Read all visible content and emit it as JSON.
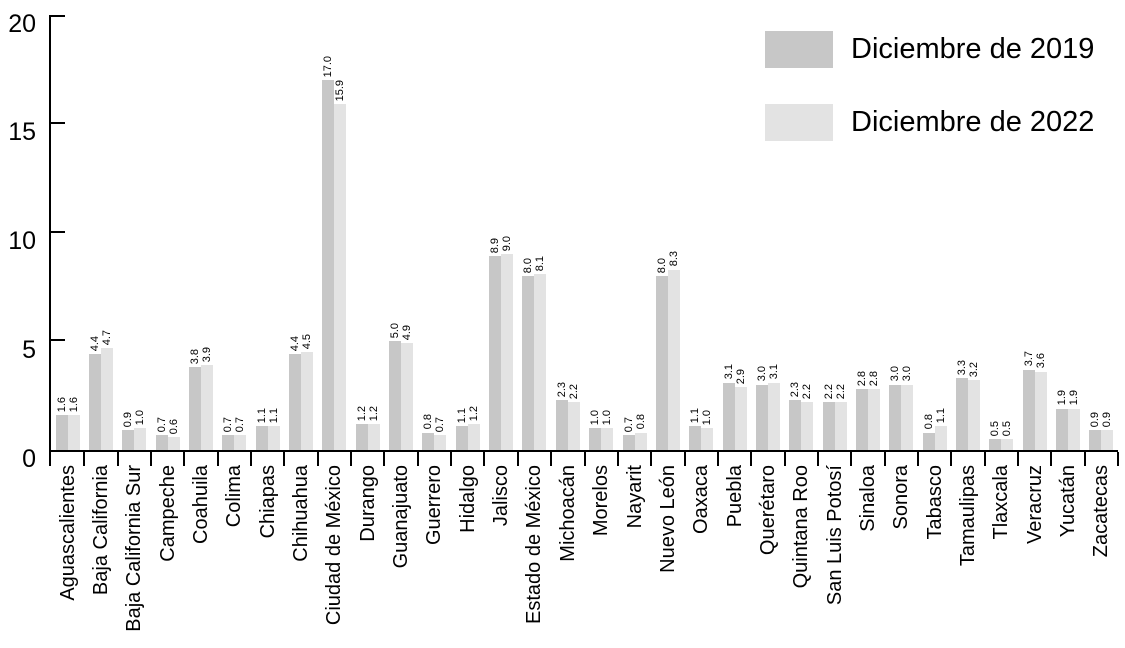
{
  "chart_data": {
    "type": "bar",
    "title": "",
    "xlabel": "",
    "ylabel": "",
    "ylim": [
      0,
      20
    ],
    "yticks": [
      0,
      5,
      10,
      15,
      20
    ],
    "grid": false,
    "legend_position": "top-right",
    "value_labels": true,
    "value_label_decimals": 1,
    "axis_color": "#000000",
    "background_color": "#ffffff",
    "categories": [
      "Aguascalientes",
      "Baja California",
      "Baja California Sur",
      "Campeche",
      "Coahuila",
      "Colima",
      "Chiapas",
      "Chihuahua",
      "Ciudad de México",
      "Durango",
      "Guanajuato",
      "Guerrero",
      "Hidalgo",
      "Jalisco",
      "Estado de México",
      "Michoacán",
      "Morelos",
      "Nayarit",
      "Nuevo León",
      "Oaxaca",
      "Puebla",
      "Querétaro",
      "Quintana Roo",
      "San Luis Potosí",
      "Sinaloa",
      "Sonora",
      "Tabasco",
      "Tamaulipas",
      "Tlaxcala",
      "Veracruz",
      "Yucatán",
      "Zacatecas"
    ],
    "series": [
      {
        "name": "Diciembre de 2019",
        "color": "#c7c7c7",
        "values": [
          1.6,
          4.4,
          0.9,
          0.7,
          3.8,
          0.7,
          1.1,
          4.4,
          17.0,
          1.2,
          5.0,
          0.8,
          1.1,
          8.9,
          8.0,
          2.3,
          1.0,
          0.7,
          8.0,
          1.1,
          3.1,
          3.0,
          2.3,
          2.2,
          2.8,
          3.0,
          0.8,
          3.3,
          0.5,
          3.7,
          1.9,
          0.9
        ]
      },
      {
        "name": "Diciembre de 2022",
        "color": "#e3e3e3",
        "values": [
          1.6,
          4.7,
          1.0,
          0.6,
          3.9,
          0.7,
          1.1,
          4.5,
          15.9,
          1.2,
          4.9,
          0.7,
          1.2,
          9.0,
          8.1,
          2.2,
          1.0,
          0.8,
          8.3,
          1.0,
          2.9,
          3.1,
          2.2,
          2.2,
          2.8,
          3.0,
          1.1,
          3.2,
          0.5,
          3.6,
          1.9,
          0.9
        ]
      }
    ]
  }
}
